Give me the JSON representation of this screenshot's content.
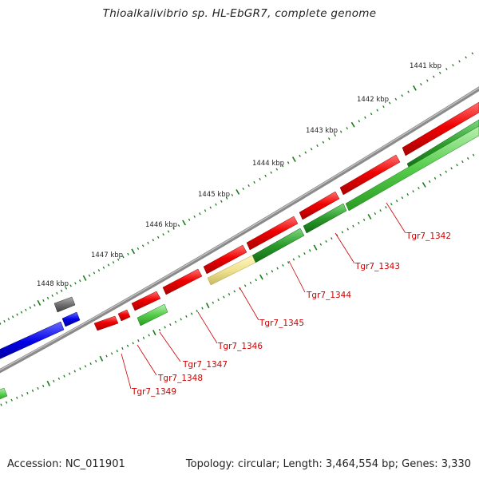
{
  "title": "Thioalkalivibrio sp. HL-EbGR7, complete genome",
  "footer": {
    "accession": "Accession: NC_011901",
    "info": "Topology: circular; Length: 3,464,554 bp; Genes: 3,330"
  },
  "ticks": [
    "1441 kbp",
    "1442 kbp",
    "1443 kbp",
    "1444 kbp",
    "1445 kbp",
    "1446 kbp",
    "1447 kbp",
    "1448 kbp"
  ],
  "gene_labels": [
    "Tgr7_1342",
    "Tgr7_1343",
    "Tgr7_1344",
    "Tgr7_1345",
    "Tgr7_1346",
    "Tgr7_1347",
    "Tgr7_1348",
    "Tgr7_1349"
  ],
  "colors": {
    "forward_cds": "#e80000",
    "reverse_cds": "#22a022",
    "highlight": "#f0e290",
    "blue_feature": "#0000e6",
    "gray_feature": "#707070",
    "backbone": "#888888",
    "tick": "#1a7a1a"
  }
}
